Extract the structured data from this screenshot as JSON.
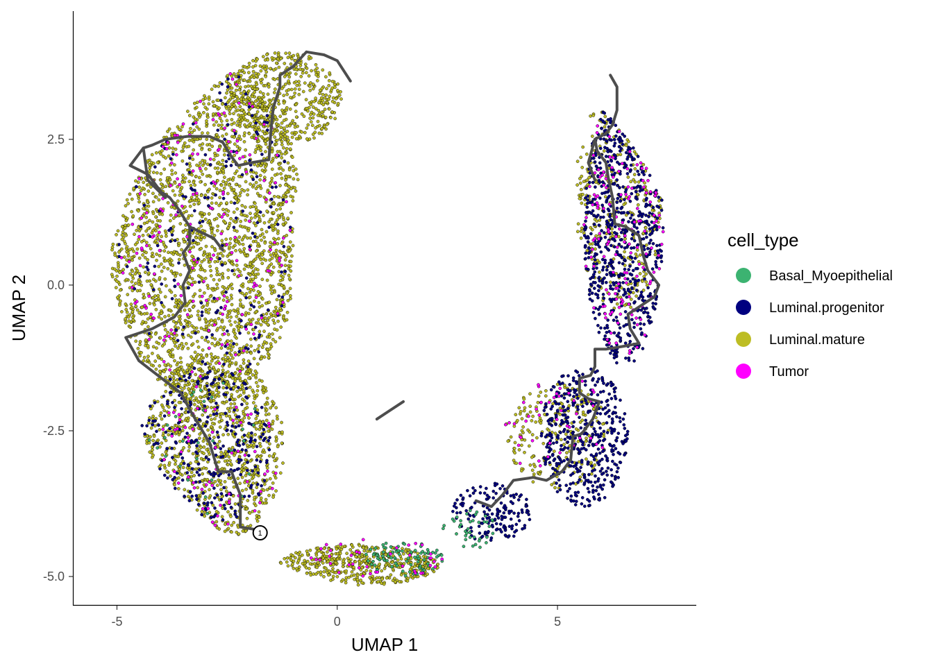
{
  "chart_data": {
    "type": "scatter",
    "title": "",
    "xlabel": "UMAP 1",
    "ylabel": "UMAP 2",
    "xlim": [
      -6.0,
      8.15
    ],
    "ylim": [
      -5.5,
      4.7
    ],
    "x_ticks": [
      "-5",
      "0",
      "5"
    ],
    "x_tick_values": [
      -5,
      0,
      5
    ],
    "y_ticks": [
      "2.5",
      "0.0",
      "-2.5",
      "-5.0"
    ],
    "y_tick_values": [
      2.5,
      0.0,
      -2.5,
      -5.0
    ],
    "grid": false,
    "legend": {
      "title": "cell_type",
      "position": "right",
      "entries": [
        {
          "label": "Basal_Myoepithelial",
          "color": "#3cb371"
        },
        {
          "label": "Luminal.progenitor",
          "color": "#000080"
        },
        {
          "label": "Luminal.mature",
          "color": "#bdbd24"
        },
        {
          "label": "Tumor",
          "color": "#ff00ff"
        }
      ]
    },
    "series": [
      {
        "name": "Luminal.mature",
        "color": "#bdbd24",
        "regions": [
          {
            "cx": -3.0,
            "cy": 1.0,
            "rx": 2.2,
            "ry": 3.0,
            "n": 2200
          },
          {
            "cx": -2.8,
            "cy": -2.8,
            "rx": 1.6,
            "ry": 1.6,
            "n": 900
          },
          {
            "cx": -1.2,
            "cy": 3.2,
            "rx": 1.3,
            "ry": 0.8,
            "n": 500
          },
          {
            "cx": 0.5,
            "cy": -4.8,
            "rx": 1.8,
            "ry": 0.35,
            "n": 450
          },
          {
            "cx": 6.4,
            "cy": 1.5,
            "rx": 1.0,
            "ry": 2.0,
            "n": 300
          },
          {
            "cx": 5.0,
            "cy": -2.6,
            "rx": 1.2,
            "ry": 0.9,
            "n": 220
          }
        ]
      },
      {
        "name": "Luminal.progenitor",
        "color": "#000080",
        "regions": [
          {
            "cx": 6.5,
            "cy": 1.0,
            "rx": 0.9,
            "ry": 2.4,
            "n": 700
          },
          {
            "cx": 5.6,
            "cy": -2.6,
            "rx": 1.0,
            "ry": 1.2,
            "n": 450
          },
          {
            "cx": 3.5,
            "cy": -3.9,
            "rx": 0.9,
            "ry": 0.5,
            "n": 160
          },
          {
            "cx": -3.0,
            "cy": -2.8,
            "rx": 1.5,
            "ry": 1.4,
            "n": 260
          },
          {
            "cx": -3.0,
            "cy": 1.0,
            "rx": 2.0,
            "ry": 2.8,
            "n": 180
          }
        ]
      },
      {
        "name": "Basal_Myoepithelial",
        "color": "#3cb371",
        "regions": [
          {
            "cx": 1.5,
            "cy": -4.7,
            "rx": 0.9,
            "ry": 0.3,
            "n": 90
          },
          {
            "cx": 3.0,
            "cy": -4.2,
            "rx": 0.6,
            "ry": 0.35,
            "n": 40
          },
          {
            "cx": -3.0,
            "cy": -2.8,
            "rx": 1.4,
            "ry": 1.2,
            "n": 30
          }
        ]
      },
      {
        "name": "Tumor",
        "color": "#ff00ff",
        "regions": [
          {
            "cx": -3.0,
            "cy": 1.0,
            "rx": 2.0,
            "ry": 2.8,
            "n": 170
          },
          {
            "cx": 6.5,
            "cy": 1.0,
            "rx": 0.9,
            "ry": 2.3,
            "n": 150
          },
          {
            "cx": -2.8,
            "cy": -3.0,
            "rx": 1.5,
            "ry": 1.3,
            "n": 60
          },
          {
            "cx": 5.0,
            "cy": -2.5,
            "rx": 1.2,
            "ry": 1.0,
            "n": 45
          },
          {
            "cx": 0.8,
            "cy": -4.7,
            "rx": 1.6,
            "ry": 0.35,
            "n": 40
          }
        ]
      }
    ],
    "trajectory": {
      "color": "#4d4d4d",
      "segments": [
        [
          [
            -1.8,
            -4.2
          ],
          [
            -2.2,
            -4.15
          ],
          [
            -2.2,
            -3.6
          ],
          [
            -2.4,
            -3.2
          ],
          [
            -2.7,
            -3.2
          ],
          [
            -2.9,
            -2.7
          ],
          [
            -3.3,
            -2.2
          ],
          [
            -3.55,
            -1.85
          ],
          [
            -3.9,
            -1.65
          ],
          [
            -4.5,
            -1.3
          ],
          [
            -4.8,
            -0.9
          ],
          [
            -4.4,
            -0.8
          ],
          [
            -4.2,
            -0.75
          ],
          [
            -3.7,
            -0.55
          ],
          [
            -3.45,
            -0.3
          ],
          [
            -3.5,
            0.0
          ],
          [
            -3.35,
            0.25
          ],
          [
            -3.5,
            0.55
          ],
          [
            -3.35,
            0.7
          ],
          [
            -3.35,
            1.0
          ],
          [
            -3.6,
            1.3
          ],
          [
            -3.8,
            1.5
          ],
          [
            -4.0,
            1.6
          ],
          [
            -4.3,
            1.9
          ],
          [
            -4.7,
            2.05
          ],
          [
            -4.4,
            2.35
          ],
          [
            -4.2,
            2.4
          ],
          [
            -3.9,
            2.5
          ],
          [
            -3.4,
            2.55
          ],
          [
            -2.9,
            2.55
          ],
          [
            -2.6,
            2.45
          ],
          [
            -2.4,
            2.2
          ],
          [
            -2.25,
            2.05
          ],
          [
            -1.95,
            2.1
          ],
          [
            -1.55,
            2.15
          ],
          [
            -1.5,
            2.7
          ],
          [
            -1.45,
            3.05
          ],
          [
            -1.3,
            3.4
          ],
          [
            -1.3,
            3.6
          ],
          [
            -1.0,
            3.75
          ],
          [
            -0.7,
            4.0
          ],
          [
            -0.3,
            3.95
          ],
          [
            0.0,
            3.85
          ],
          [
            0.3,
            3.5
          ]
        ],
        [
          [
            -3.35,
            1.0
          ],
          [
            -2.8,
            0.8
          ],
          [
            -2.6,
            0.6
          ]
        ],
        [
          [
            -4.4,
            2.35
          ],
          [
            -4.3,
            1.8
          ],
          [
            -3.9,
            1.5
          ]
        ],
        [
          [
            3.15,
            -3.7
          ],
          [
            3.5,
            -3.8
          ],
          [
            3.75,
            -3.6
          ],
          [
            4.0,
            -3.35
          ],
          [
            4.45,
            -3.3
          ],
          [
            4.75,
            -3.35
          ],
          [
            5.1,
            -3.2
          ],
          [
            5.3,
            -3.0
          ],
          [
            5.35,
            -2.6
          ],
          [
            5.55,
            -2.55
          ],
          [
            5.8,
            -2.3
          ],
          [
            5.95,
            -2.0
          ],
          [
            5.7,
            -1.95
          ],
          [
            5.5,
            -1.85
          ],
          [
            5.5,
            -1.6
          ],
          [
            5.75,
            -1.55
          ],
          [
            5.85,
            -1.4
          ],
          [
            5.85,
            -1.1
          ],
          [
            6.1,
            -1.1
          ],
          [
            6.5,
            -1.05
          ],
          [
            6.85,
            -1.0
          ],
          [
            6.65,
            -0.75
          ],
          [
            6.6,
            -0.5
          ],
          [
            6.9,
            -0.35
          ],
          [
            7.2,
            -0.2
          ],
          [
            7.3,
            0.0
          ],
          [
            7.05,
            0.25
          ],
          [
            6.95,
            0.5
          ],
          [
            6.85,
            0.85
          ],
          [
            6.55,
            1.0
          ],
          [
            6.3,
            1.05
          ],
          [
            6.25,
            1.5
          ],
          [
            6.15,
            1.85
          ],
          [
            6.1,
            2.1
          ],
          [
            5.9,
            2.3
          ],
          [
            5.85,
            2.5
          ],
          [
            6.1,
            2.6
          ],
          [
            6.25,
            2.75
          ],
          [
            6.35,
            3.0
          ],
          [
            6.35,
            3.4
          ],
          [
            6.2,
            3.6
          ]
        ],
        [
          [
            5.85,
            2.5
          ],
          [
            5.7,
            2.1
          ],
          [
            5.85,
            1.8
          ]
        ],
        [
          [
            0.9,
            -2.3
          ],
          [
            1.2,
            -2.15
          ],
          [
            1.5,
            -2.0
          ]
        ]
      ],
      "node": {
        "x": -1.75,
        "y": -4.25,
        "label": "1"
      }
    }
  }
}
